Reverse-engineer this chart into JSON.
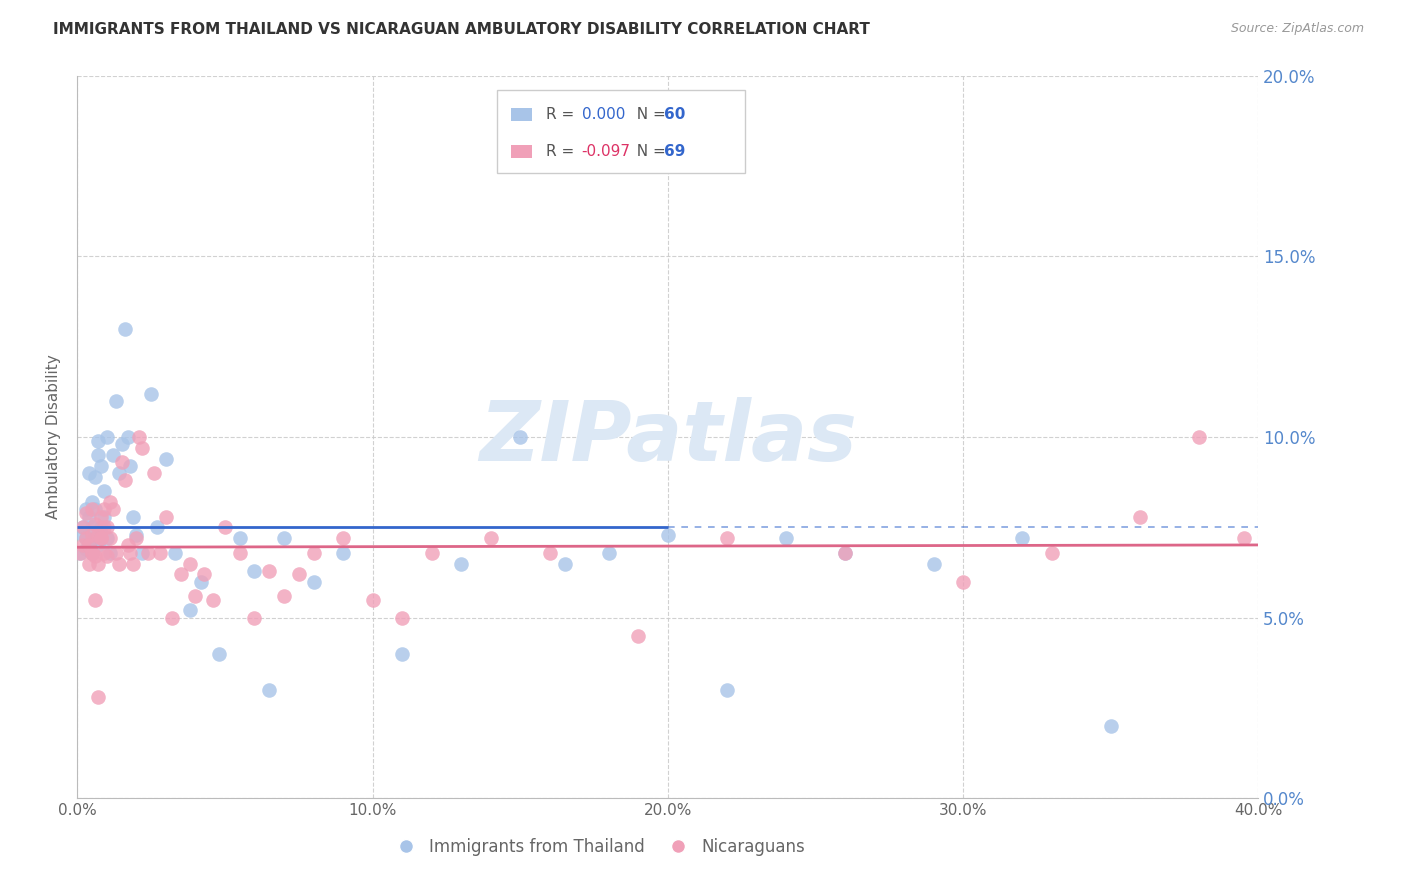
{
  "title": "IMMIGRANTS FROM THAILAND VS NICARAGUAN AMBULATORY DISABILITY CORRELATION CHART",
  "source": "Source: ZipAtlas.com",
  "ylabel": "Ambulatory Disability",
  "xlim": [
    0.0,
    0.4
  ],
  "ylim": [
    0.0,
    0.2
  ],
  "yticks": [
    0.0,
    0.05,
    0.1,
    0.15,
    0.2
  ],
  "xticks": [
    0.0,
    0.1,
    0.2,
    0.3,
    0.4
  ],
  "series1_label": "Immigrants from Thailand",
  "series1_R": "0.000",
  "series1_N": "60",
  "series1_color": "#a8c4e8",
  "series1_line_color": "#3366cc",
  "series2_label": "Nicaraguans",
  "series2_R": "-0.097",
  "series2_N": "69",
  "series2_color": "#f0a0b8",
  "series2_line_color": "#dd6688",
  "background_color": "#ffffff",
  "grid_color": "#cccccc",
  "title_color": "#333333",
  "axis_label_color": "#666666",
  "right_axis_color": "#5588cc",
  "watermark_color": "#dce8f5",
  "watermark_text": "ZIPatlas",
  "legend_text_color": "#555555",
  "legend_val_color_blue": "#3366cc",
  "legend_val_color_pink": "#dd3366",
  "series1_x": [
    0.001,
    0.002,
    0.002,
    0.003,
    0.003,
    0.003,
    0.004,
    0.004,
    0.004,
    0.005,
    0.005,
    0.005,
    0.006,
    0.006,
    0.006,
    0.007,
    0.007,
    0.007,
    0.008,
    0.008,
    0.009,
    0.009,
    0.01,
    0.01,
    0.011,
    0.012,
    0.013,
    0.014,
    0.015,
    0.016,
    0.017,
    0.018,
    0.019,
    0.02,
    0.022,
    0.025,
    0.027,
    0.03,
    0.033,
    0.038,
    0.042,
    0.048,
    0.055,
    0.06,
    0.065,
    0.07,
    0.08,
    0.09,
    0.11,
    0.13,
    0.15,
    0.165,
    0.18,
    0.2,
    0.22,
    0.24,
    0.26,
    0.29,
    0.32,
    0.35
  ],
  "series1_y": [
    0.068,
    0.073,
    0.075,
    0.069,
    0.072,
    0.08,
    0.07,
    0.078,
    0.09,
    0.068,
    0.082,
    0.075,
    0.072,
    0.08,
    0.089,
    0.07,
    0.099,
    0.095,
    0.092,
    0.075,
    0.085,
    0.078,
    0.072,
    0.1,
    0.068,
    0.095,
    0.11,
    0.09,
    0.098,
    0.13,
    0.1,
    0.092,
    0.078,
    0.073,
    0.068,
    0.112,
    0.075,
    0.094,
    0.068,
    0.052,
    0.06,
    0.04,
    0.072,
    0.063,
    0.03,
    0.072,
    0.06,
    0.068,
    0.04,
    0.065,
    0.1,
    0.065,
    0.068,
    0.073,
    0.03,
    0.072,
    0.068,
    0.065,
    0.072,
    0.02
  ],
  "series2_x": [
    0.001,
    0.002,
    0.002,
    0.003,
    0.003,
    0.004,
    0.004,
    0.005,
    0.005,
    0.005,
    0.006,
    0.006,
    0.007,
    0.007,
    0.008,
    0.008,
    0.009,
    0.009,
    0.01,
    0.01,
    0.011,
    0.011,
    0.012,
    0.013,
    0.014,
    0.015,
    0.016,
    0.017,
    0.018,
    0.019,
    0.02,
    0.021,
    0.022,
    0.024,
    0.026,
    0.028,
    0.03,
    0.032,
    0.035,
    0.038,
    0.04,
    0.043,
    0.046,
    0.05,
    0.055,
    0.06,
    0.065,
    0.07,
    0.075,
    0.08,
    0.09,
    0.1,
    0.11,
    0.12,
    0.14,
    0.16,
    0.19,
    0.22,
    0.26,
    0.3,
    0.33,
    0.36,
    0.38,
    0.395,
    0.005,
    0.006,
    0.007,
    0.008,
    0.009
  ],
  "series2_y": [
    0.068,
    0.07,
    0.075,
    0.072,
    0.079,
    0.065,
    0.07,
    0.068,
    0.073,
    0.08,
    0.067,
    0.076,
    0.065,
    0.073,
    0.072,
    0.078,
    0.068,
    0.08,
    0.067,
    0.075,
    0.072,
    0.082,
    0.08,
    0.068,
    0.065,
    0.093,
    0.088,
    0.07,
    0.068,
    0.065,
    0.072,
    0.1,
    0.097,
    0.068,
    0.09,
    0.068,
    0.078,
    0.05,
    0.062,
    0.065,
    0.056,
    0.062,
    0.055,
    0.075,
    0.068,
    0.05,
    0.063,
    0.056,
    0.062,
    0.068,
    0.072,
    0.055,
    0.05,
    0.068,
    0.072,
    0.068,
    0.045,
    0.072,
    0.068,
    0.06,
    0.068,
    0.078,
    0.1,
    0.072,
    0.068,
    0.055,
    0.028,
    0.072,
    0.075
  ]
}
